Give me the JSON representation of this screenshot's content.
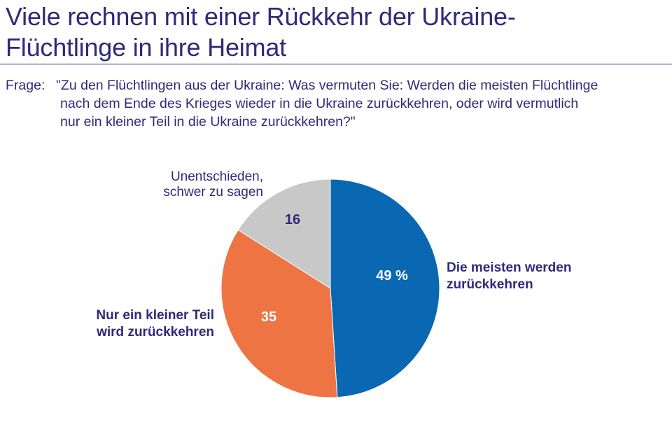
{
  "header": {
    "title_line1": "Viele rechnen mit einer Rückkehr der Ukraine-",
    "title_line2": "Flüchtlinge in ihre Heimat"
  },
  "question": {
    "label": "Frage:",
    "line1": "\"Zu den Flüchtlingen aus der Ukraine: Was vermuten Sie: Werden die meisten Flüchtlinge",
    "line2": "nach dem Ende des Krieges wieder in die Ukraine zurückkehren, oder wird vermutlich",
    "line3": "nur ein kleiner Teil in die Ukraine zurückkehren?\""
  },
  "colors": {
    "text": "#2e2a7a",
    "blue": "#0a67b1",
    "orange": "#ef7444",
    "grey": "#c8c8c8"
  },
  "chart_data": {
    "type": "pie",
    "title": "Viele rechnen mit einer Rückkehr der Ukraine-Flüchtlinge in ihre Heimat",
    "unit": "%",
    "slices": [
      {
        "label_lines": [
          "Die meisten werden",
          "zurückkehren"
        ],
        "value": 49,
        "value_text": "49 %",
        "color": "#0a67b1",
        "label_style": "bold",
        "value_color": "#ffffff"
      },
      {
        "label_lines": [
          "Nur ein kleiner Teil",
          "wird zurückkehren"
        ],
        "value": 35,
        "value_text": "35",
        "color": "#ef7444",
        "label_style": "bold",
        "value_color": "#ffffff"
      },
      {
        "label_lines": [
          "Unentschieden,",
          "schwer zu sagen"
        ],
        "value": 16,
        "value_text": "16",
        "color": "#c8c8c8",
        "label_style": "normal",
        "value_color": "#2e2a7a"
      }
    ],
    "start_angle_deg": 0,
    "direction": "clockwise",
    "legend": "none"
  }
}
